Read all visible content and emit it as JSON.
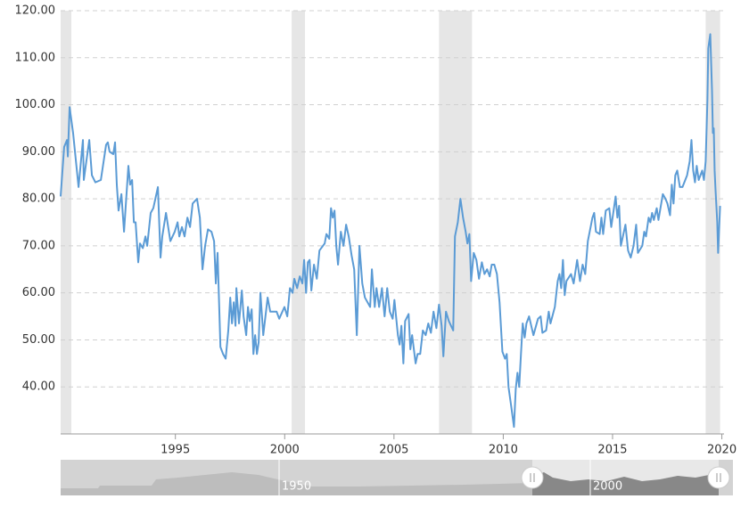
{
  "chart_data": {
    "type": "line",
    "x": [
      1989.75,
      1989.91,
      1990.04,
      1990.08,
      1990.16,
      1990.32,
      1990.57,
      1990.77,
      1990.81,
      1991.06,
      1991.18,
      1991.34,
      1991.59,
      1991.83,
      1991.91,
      1991.99,
      1992.16,
      1992.24,
      1992.32,
      1992.4,
      1992.53,
      1992.65,
      1992.85,
      1992.93,
      1993.02,
      1993.1,
      1993.18,
      1993.3,
      1993.38,
      1993.51,
      1993.63,
      1993.71,
      1993.87,
      1993.99,
      1994.2,
      1994.32,
      1994.4,
      1994.57,
      1994.77,
      1994.97,
      1995.1,
      1995.18,
      1995.3,
      1995.42,
      1995.55,
      1995.67,
      1995.79,
      1995.99,
      1996.12,
      1996.24,
      1996.36,
      1996.49,
      1996.65,
      1996.77,
      1996.85,
      1996.93,
      1997.06,
      1997.18,
      1997.3,
      1997.42,
      1997.51,
      1997.59,
      1997.67,
      1997.75,
      1997.79,
      1997.91,
      1998.04,
      1998.12,
      1998.24,
      1998.32,
      1998.4,
      1998.49,
      1998.57,
      1998.65,
      1998.73,
      1998.81,
      1998.89,
      1999.02,
      1999.22,
      1999.34,
      1999.63,
      1999.75,
      1999.99,
      2000.12,
      2000.24,
      2000.36,
      2000.44,
      2000.57,
      2000.69,
      2000.81,
      2000.89,
      2000.98,
      2001.06,
      2001.14,
      2001.22,
      2001.34,
      2001.47,
      2001.59,
      2001.83,
      2001.91,
      2002.04,
      2002.12,
      2002.2,
      2002.28,
      2002.36,
      2002.44,
      2002.57,
      2002.69,
      2002.81,
      2002.93,
      2003.06,
      2003.18,
      2003.3,
      2003.42,
      2003.55,
      2003.67,
      2003.91,
      2003.99,
      2004.12,
      2004.2,
      2004.32,
      2004.45,
      2004.57,
      2004.69,
      2004.81,
      2004.94,
      2005.02,
      2005.18,
      2005.26,
      2005.34,
      2005.43,
      2005.51,
      2005.67,
      2005.75,
      2005.83,
      2005.99,
      2006.08,
      2006.2,
      2006.32,
      2006.45,
      2006.57,
      2006.69,
      2006.81,
      2006.94,
      2007.06,
      2007.18,
      2007.26,
      2007.38,
      2007.51,
      2007.71,
      2007.79,
      2007.92,
      2008.04,
      2008.16,
      2008.28,
      2008.36,
      2008.45,
      2008.53,
      2008.65,
      2008.77,
      2008.89,
      2009.02,
      2009.14,
      2009.26,
      2009.38,
      2009.47,
      2009.59,
      2009.71,
      2009.83,
      2009.96,
      2010.08,
      2010.16,
      2010.24,
      2010.36,
      2010.49,
      2010.57,
      2010.65,
      2010.73,
      2010.81,
      2010.89,
      2010.98,
      2011.06,
      2011.18,
      2011.38,
      2011.59,
      2011.71,
      2011.79,
      2011.96,
      2012.08,
      2012.16,
      2012.36,
      2012.49,
      2012.57,
      2012.65,
      2012.73,
      2012.81,
      2012.89,
      2013.1,
      2013.22,
      2013.38,
      2013.51,
      2013.63,
      2013.75,
      2013.87,
      2014.08,
      2014.16,
      2014.24,
      2014.41,
      2014.49,
      2014.57,
      2014.69,
      2014.85,
      2014.94,
      2015.14,
      2015.22,
      2015.3,
      2015.38,
      2015.59,
      2015.71,
      2015.83,
      2015.96,
      2016.08,
      2016.16,
      2016.36,
      2016.45,
      2016.53,
      2016.65,
      2016.73,
      2016.81,
      2016.89,
      2017.02,
      2017.1,
      2017.3,
      2017.42,
      2017.51,
      2017.63,
      2017.71,
      2017.79,
      2017.87,
      2017.96,
      2018.08,
      2018.2,
      2018.41,
      2018.53,
      2018.61,
      2018.69,
      2018.77,
      2018.85,
      2018.94,
      2019.1,
      2019.18,
      2019.26,
      2019.34,
      2019.38,
      2019.47,
      2019.55,
      2019.59,
      2019.63,
      2019.67,
      2019.71,
      2019.79,
      2019.83,
      2019.92
    ],
    "series": [
      {
        "color": "#5b9bd5",
        "values": [
          80.5,
          91,
          92.5,
          89,
          99.5,
          94,
          82.5,
          92.5,
          84,
          92.5,
          85,
          83.5,
          84,
          91.5,
          92,
          90,
          89.5,
          92,
          83,
          77.5,
          81,
          73,
          87,
          83,
          84,
          75,
          75,
          66.5,
          70.5,
          69.5,
          72,
          70,
          77,
          78,
          82.5,
          67.5,
          72,
          77,
          71,
          73,
          75,
          72,
          74,
          72,
          76,
          74,
          79,
          80,
          76,
          65,
          70,
          73.5,
          73,
          71,
          62,
          68.5,
          48.5,
          47,
          46,
          52,
          59,
          53.5,
          58,
          53,
          61,
          53.5,
          60.5,
          55,
          51,
          57,
          54,
          56.5,
          47,
          51,
          47,
          49.5,
          60,
          51,
          59,
          56,
          56,
          54.5,
          57,
          55,
          61,
          60,
          63,
          61,
          63.5,
          62,
          67,
          60,
          66.5,
          67,
          60.5,
          66,
          63,
          69,
          70.5,
          72.5,
          71.5,
          78,
          76,
          77.5,
          70,
          66,
          73,
          70,
          74.5,
          72,
          68,
          65,
          51,
          70,
          62,
          59,
          57,
          65,
          57,
          61,
          57,
          61,
          55,
          61,
          56,
          54.5,
          58.5,
          51,
          49,
          53,
          45,
          54,
          55.5,
          48,
          51,
          45,
          47,
          47,
          52,
          51,
          53.5,
          51.5,
          56,
          52.5,
          57.5,
          53,
          46.5,
          56,
          54,
          52,
          72,
          75,
          80,
          76,
          73,
          70.5,
          72.5,
          62.5,
          68.5,
          67,
          63,
          66.5,
          64,
          65,
          63.5,
          66,
          66,
          64,
          58,
          47.5,
          46,
          47,
          40,
          36,
          31.5,
          39.5,
          43,
          40,
          47,
          53.5,
          50.5,
          53.5,
          55,
          51,
          54.5,
          55,
          51.5,
          52,
          56,
          53.5,
          57,
          62.5,
          64,
          61,
          67,
          59.5,
          62.5,
          64,
          62,
          67,
          62.5,
          66,
          64,
          71,
          76,
          77,
          73,
          72.5,
          76,
          72.5,
          77.5,
          78,
          74,
          80.5,
          76,
          78.5,
          70,
          74.5,
          69,
          67.5,
          70,
          74.5,
          68.5,
          70,
          73,
          72,
          76,
          75,
          77,
          75.5,
          78,
          75.5,
          81,
          80,
          79,
          76.5,
          83,
          79,
          85,
          86,
          82.5,
          82.5,
          85,
          88,
          92.5,
          86,
          83.5,
          87,
          84,
          86,
          84,
          88,
          101,
          112,
          115,
          103,
          94,
          95,
          86,
          82,
          75,
          68.5,
          78.5
        ]
      }
    ],
    "shaded_ranges": [
      [
        1989.75,
        1990.24
      ],
      [
        2000.32,
        2000.93
      ],
      [
        2007.06,
        2008.57
      ],
      [
        2019.26,
        2019.92
      ]
    ],
    "xlim": [
      1989.75,
      2020.1
    ],
    "xticks": [
      1995,
      2000,
      2005,
      2010,
      2015,
      2020
    ],
    "ylim": [
      30,
      120
    ],
    "yticks": [
      {
        "value": 40,
        "label": "40.00"
      },
      {
        "value": 50,
        "label": "50.00"
      },
      {
        "value": 60,
        "label": "60.00"
      },
      {
        "value": 70,
        "label": "70.00"
      },
      {
        "value": 80,
        "label": "80.00"
      },
      {
        "value": 90,
        "label": "90.00"
      },
      {
        "value": 100,
        "label": "100.00"
      },
      {
        "value": 110,
        "label": "110.00"
      },
      {
        "value": 120,
        "label": "120.00"
      }
    ],
    "grid": true,
    "navigator": {
      "labels": [
        "1950",
        "2000"
      ]
    }
  }
}
